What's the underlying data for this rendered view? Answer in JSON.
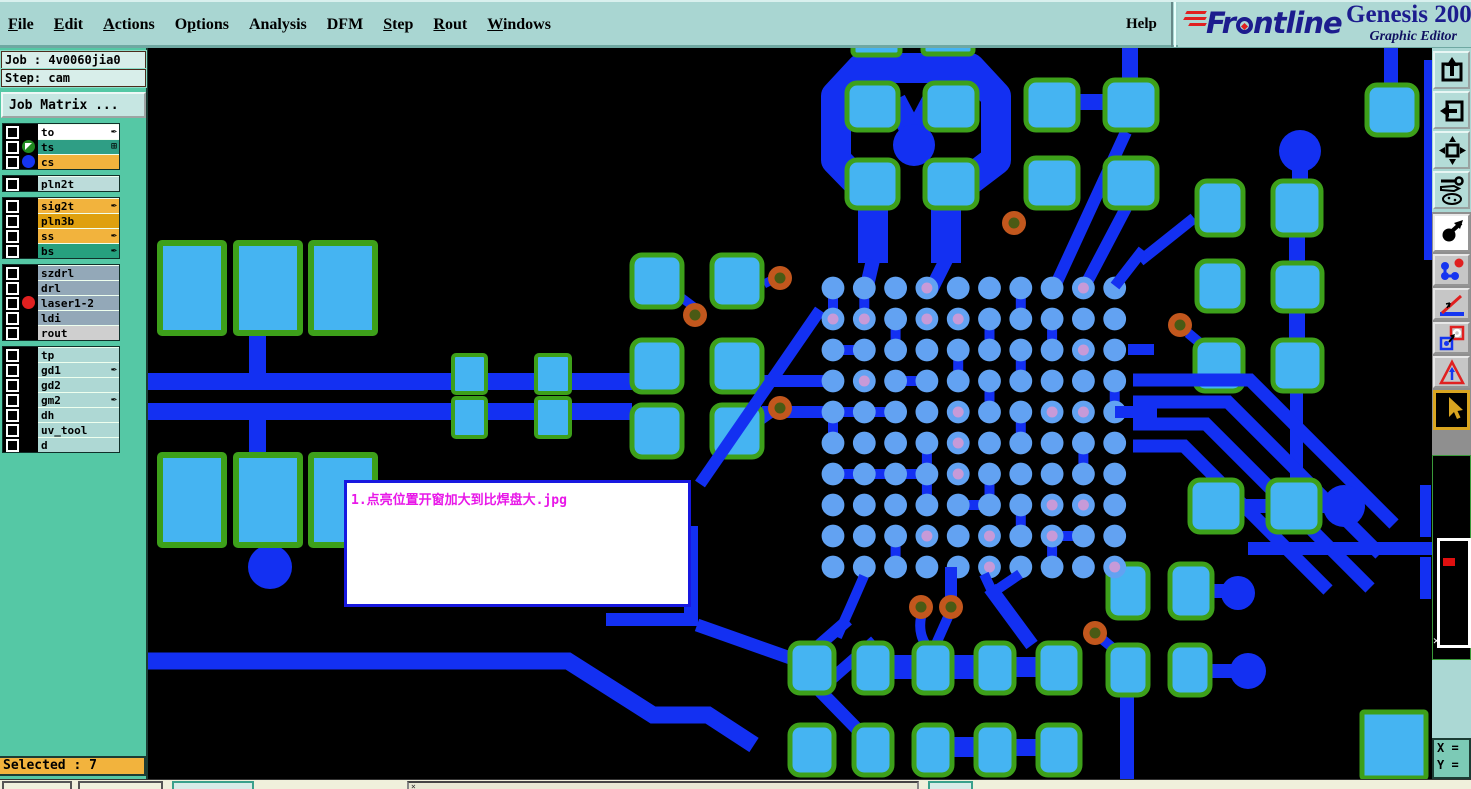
{
  "menu": {
    "items": [
      {
        "pre": "",
        "mn": "F",
        "post": "ile"
      },
      {
        "pre": "",
        "mn": "E",
        "post": "dit"
      },
      {
        "pre": "",
        "mn": "A",
        "post": "ctions"
      },
      {
        "pre": "O",
        "mn": "p",
        "post": "tions"
      },
      {
        "pre": "Analysis",
        "mn": "",
        "post": ""
      },
      {
        "pre": "DFM",
        "mn": "",
        "post": ""
      },
      {
        "pre": "",
        "mn": "S",
        "post": "tep"
      },
      {
        "pre": "",
        "mn": "R",
        "post": "out"
      },
      {
        "pre": "",
        "mn": "W",
        "post": "indows"
      }
    ],
    "help": "Help"
  },
  "logo": {
    "brand_pre": "Fr",
    "brand_post": "ntline",
    "product": "Genesis 200",
    "subtitle": "Graphic Editor"
  },
  "sidebar": {
    "job": "Job : 4v0060jia0",
    "step": "Step: cam",
    "job_matrix": "Job Matrix ...",
    "selected": "Selected : 7",
    "groups": [
      {
        "layers": [
          {
            "name": "to",
            "color": "#ffffff",
            "glyph": "✒"
          },
          {
            "name": "ts",
            "color": "#2f9e85",
            "glyph": "⊞"
          },
          {
            "name": "cs",
            "color": "#f2b33d",
            "glyph": ""
          }
        ]
      },
      {
        "layers": [
          {
            "name": "pln2t",
            "color": "#bcdcda",
            "glyph": ""
          }
        ]
      },
      {
        "layers": [
          {
            "name": "sig2t",
            "color": "#f2b33d",
            "glyph": "✒"
          },
          {
            "name": "pln3b",
            "color": "#dfa00f",
            "glyph": ""
          },
          {
            "name": "ss",
            "color": "#f2b33d",
            "glyph": "✒"
          },
          {
            "name": "bs",
            "color": "#27a07e",
            "glyph": "✒"
          }
        ]
      },
      {
        "layers": [
          {
            "name": "szdrl",
            "color": "#93a8b8",
            "glyph": ""
          },
          {
            "name": "drl",
            "color": "#93a8b8",
            "glyph": ""
          },
          {
            "name": "laser1-2",
            "color": "#93a8b8",
            "glyph": ""
          },
          {
            "name": "ldi",
            "color": "#93a8b8",
            "glyph": ""
          },
          {
            "name": "rout",
            "color": "#cfcfcf",
            "glyph": ""
          }
        ]
      },
      {
        "layers": [
          {
            "name": "tp",
            "color": "#aed8d4",
            "glyph": ""
          },
          {
            "name": "gd1",
            "color": "#aed8d4",
            "glyph": "✒"
          },
          {
            "name": "gd2",
            "color": "#aed8d4",
            "glyph": ""
          },
          {
            "name": "gm2",
            "color": "#aed8d4",
            "glyph": "✒"
          },
          {
            "name": "dh",
            "color": "#aed8d4",
            "glyph": ""
          },
          {
            "name": "uv_tool",
            "color": "#aed8d4",
            "glyph": ""
          },
          {
            "name": "d",
            "color": "#aed8d4",
            "glyph": ""
          }
        ]
      }
    ]
  },
  "toolbar": {
    "buttons": [
      "paste-up",
      "paste-left",
      "fit-view",
      "tools",
      "select-move",
      "net-points",
      "measure-angle",
      "swap-symbols",
      "triangle-marker",
      "cursor-select"
    ]
  },
  "navigator": {
    "close_glyph": "✕"
  },
  "statusbar": {
    "x_label": "X =",
    "y_label": "Y ="
  },
  "canvas": {
    "annotation": "1.点亮位置开窗加大到比焊盘大.jpg"
  },
  "colors": {
    "trace_blue": "#1330f2",
    "pad_cyan": "#45b4f2",
    "pad_outline_green": "#3da01a",
    "bga_pad": "#62a2f2",
    "bga_dot": "#c79ad8",
    "via_ring": "#c2571d",
    "via_core": "#4a5a14",
    "annotation_text": "#e818e8",
    "selected_bg": "#f2b33d",
    "icon_blue": "#1535f0",
    "icon_red": "#e02020",
    "icon_green": "#1f8a1f"
  }
}
